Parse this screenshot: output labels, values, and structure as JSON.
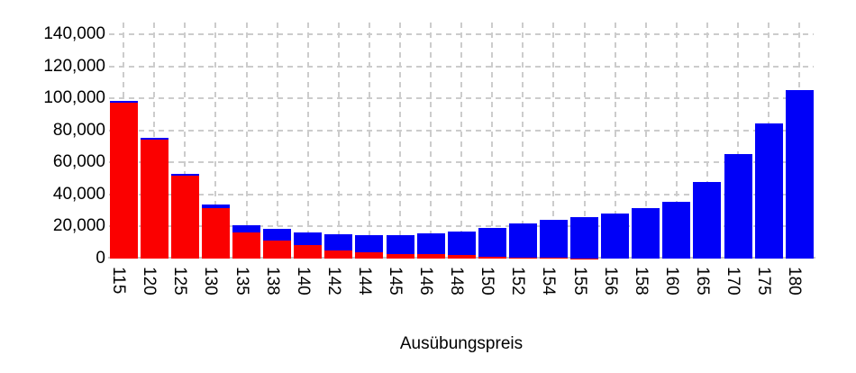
{
  "chart_data": {
    "type": "bar",
    "stacked": true,
    "title": "",
    "xlabel": "Ausübungspreis",
    "ylabel": "",
    "categories": [
      "115",
      "120",
      "125",
      "130",
      "135",
      "138",
      "140",
      "142",
      "144",
      "145",
      "146",
      "148",
      "150",
      "152",
      "154",
      "155",
      "156",
      "158",
      "160",
      "165",
      "170",
      "175",
      "180"
    ],
    "series": [
      {
        "name": "red-lower-segment",
        "color": "#fb0000",
        "values": [
          97400,
          74000,
          51500,
          31400,
          16100,
          11400,
          8300,
          5200,
          3900,
          3000,
          2600,
          2100,
          1100,
          600,
          400,
          150,
          0,
          0,
          0,
          0,
          0,
          0,
          0
        ]
      },
      {
        "name": "blue-upper-segment",
        "color": "#0000f8",
        "values": [
          1100,
          1100,
          1200,
          2200,
          4700,
          7000,
          7800,
          10000,
          10700,
          11600,
          12900,
          14900,
          18200,
          21200,
          23800,
          25700,
          28300,
          31500,
          35200,
          48000,
          65000,
          84500,
          104900
        ]
      }
    ],
    "y_ticks": [
      "0",
      "20,000",
      "40,000",
      "60,000",
      "80,000",
      "100,000",
      "120,000",
      "140,000"
    ],
    "ylim": [
      0,
      147000
    ],
    "x_tick_rotation_deg": 90,
    "grid": {
      "style": "dashed",
      "color": "#cccccc",
      "horizontal": true,
      "vertical": true
    },
    "axis_baseline_color": "#c6c6c6",
    "legend": "none",
    "text_color": "#000000"
  }
}
